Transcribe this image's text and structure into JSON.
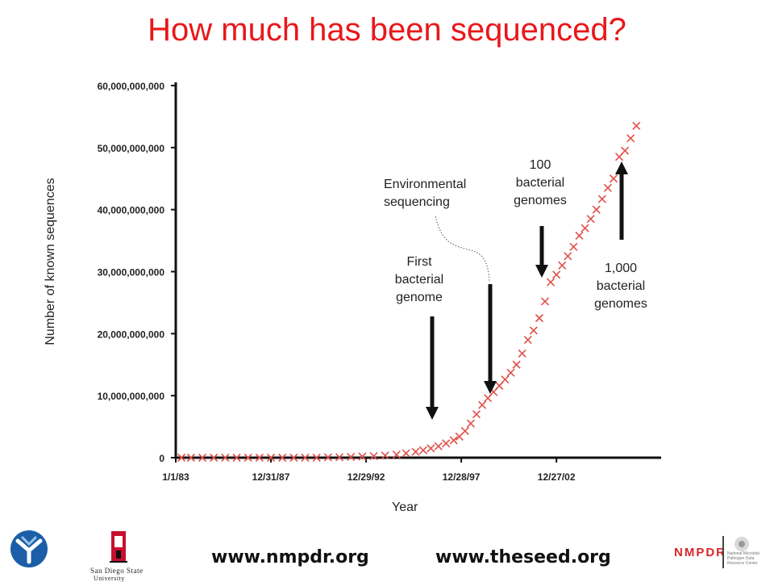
{
  "slide": {
    "title": "How much has been sequenced?",
    "footer_left": "www.nmpdr.org",
    "footer_right": "www.theseed.org",
    "logos": [
      "fig-logo-icon",
      "sdsu-logo-icon",
      "nmpdr-logo-icon"
    ],
    "sdsu_line1": "San Diego State",
    "sdsu_line2": "University",
    "nmpdr_label": "NMPDR",
    "nmpdr_small": "National Microbial Pathogen Data Resource Center"
  },
  "annotations": {
    "environmental": "Environmental sequencing",
    "hundred_line1": "100",
    "hundred_line2": "bacterial",
    "hundred_line3": "genomes",
    "first_line1": "First",
    "first_line2": "bacterial",
    "first_line3": "genome",
    "thousand_line1": "1,000",
    "thousand_line2": "bacterial",
    "thousand_line3": "genomes"
  },
  "chart_data": {
    "type": "scatter",
    "xlabel": "Year",
    "ylabel": "Number of known sequences",
    "x_tick_labels": [
      "1/1/83",
      "12/31/87",
      "12/29/92",
      "12/28/97",
      "12/27/02"
    ],
    "y_tick_labels": [
      "0",
      "10,000,000,000",
      "20,000,000,000",
      "30,000,000,000",
      "40,000,000,000",
      "50,000,000,000",
      "60,000,000,000"
    ],
    "x_range_years": [
      1983.0,
      2008.5
    ],
    "ylim": [
      0,
      60000000000
    ],
    "marker": "x",
    "marker_color": "#e0504a",
    "series": [
      {
        "x": [
          1983.3,
          1983.8,
          1984.4,
          1985.0,
          1985.6,
          1986.2,
          1986.8,
          1987.4,
          1988.0,
          1988.6,
          1989.2,
          1989.8,
          1990.4,
          1991.0,
          1991.6,
          1992.2,
          1992.8,
          1993.4,
          1994.0,
          1994.6,
          1995.1,
          1995.6,
          1996.0,
          1996.4,
          1996.8,
          1997.2,
          1997.6,
          1997.9,
          1998.2,
          1998.5,
          1998.8,
          1999.1,
          1999.4,
          1999.7,
          2000.0,
          2000.3,
          2000.6,
          2000.9,
          2001.2,
          2001.5,
          2001.8,
          2002.1,
          2002.4,
          2002.7,
          2003.0,
          2003.3,
          2003.6,
          2003.9,
          2004.2,
          2004.5,
          2004.8,
          2005.1,
          2005.4,
          2005.7,
          2006.0,
          2006.3,
          2006.6,
          2006.9,
          2007.2
        ],
        "y": [
          0,
          0,
          0,
          0,
          0,
          0,
          0,
          0,
          0,
          0,
          0,
          0,
          0,
          50000000,
          80000000,
          120000000,
          180000000,
          250000000,
          350000000,
          500000000,
          700000000,
          950000000,
          1200000000,
          1500000000,
          1850000000,
          2300000000,
          2800000000,
          3400000000,
          4300000000,
          5500000000,
          7000000000,
          8500000000,
          9600000000,
          10600000000,
          11600000000,
          12600000000,
          13700000000,
          15000000000,
          16800000000,
          19000000000,
          20500000000,
          22500000000,
          25200000000,
          28300000000,
          29500000000,
          31000000000,
          32500000000,
          34000000000,
          35800000000,
          37000000000,
          38500000000,
          40000000000,
          41700000000,
          43500000000,
          45000000000,
          48500000000,
          49500000000,
          51500000000,
          53500000000
        ]
      }
    ]
  }
}
